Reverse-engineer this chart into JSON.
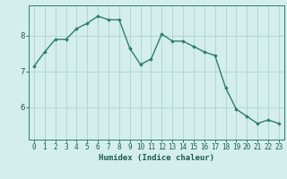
{
  "x": [
    0,
    1,
    2,
    3,
    4,
    5,
    6,
    7,
    8,
    9,
    10,
    11,
    12,
    13,
    14,
    15,
    16,
    17,
    18,
    19,
    20,
    21,
    22,
    23
  ],
  "y": [
    7.15,
    7.55,
    7.9,
    7.9,
    8.2,
    8.35,
    8.55,
    8.45,
    8.45,
    7.65,
    7.2,
    7.35,
    8.05,
    7.85,
    7.85,
    7.7,
    7.55,
    7.45,
    6.55,
    5.95,
    5.75,
    5.55,
    5.65,
    5.55
  ],
  "line_color": "#2e7d6e",
  "marker": "D",
  "marker_size": 1.8,
  "line_width": 1.0,
  "bg_color": "#d4eeec",
  "grid_color": "#aad4cc",
  "xlabel": "Humidex (Indice chaleur)",
  "xlabel_fontsize": 6.5,
  "tick_fontsize": 5.5,
  "ylim": [
    5.1,
    8.85
  ],
  "yticks": [
    6,
    7,
    8
  ],
  "axis_color": "#2e7d6e",
  "axis_label_color": "#1a5c50"
}
